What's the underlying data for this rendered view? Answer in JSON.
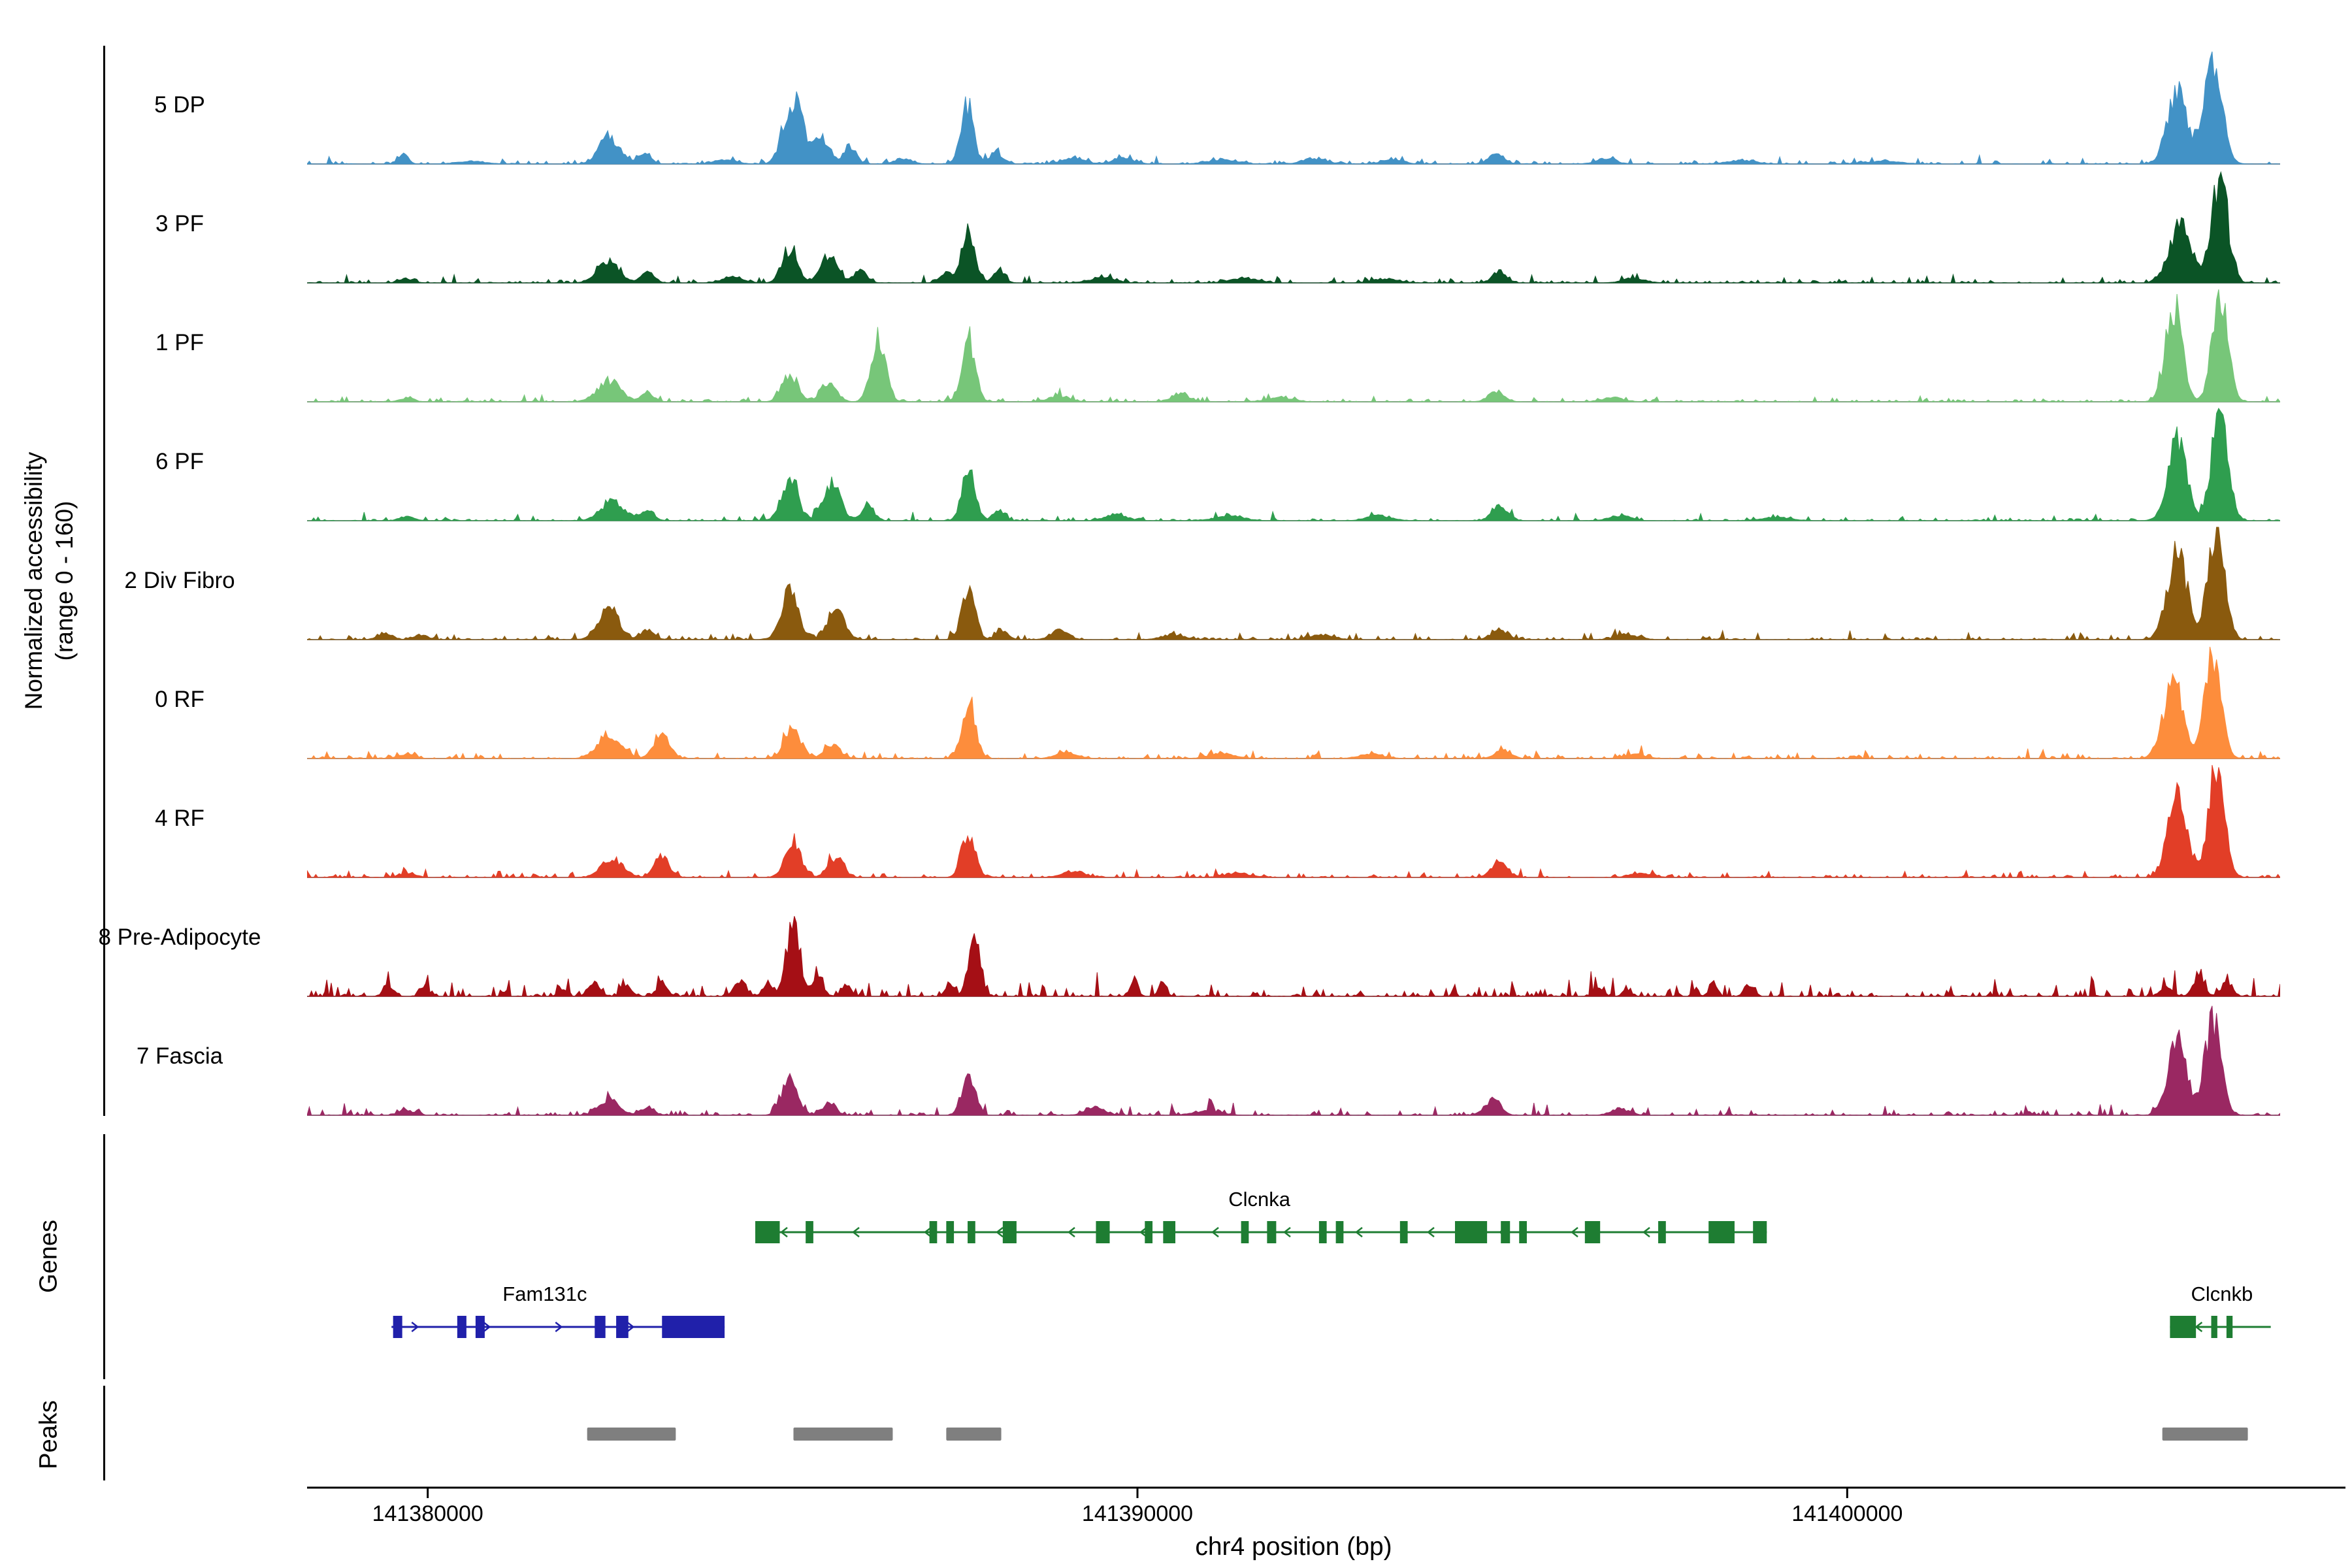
{
  "y_axis": {
    "line1": "Normalized accessibility",
    "line2": "(range 0 - 160)"
  },
  "sections": {
    "genes_label": "Genes",
    "peaks_label": "Peaks"
  },
  "x_axis": {
    "title": "chr4 position (bp)",
    "ticks": [
      {
        "bp": 141380000,
        "label": "141380000"
      },
      {
        "bp": 141390000,
        "label": "141390000"
      },
      {
        "bp": 141400000,
        "label": "141400000"
      }
    ]
  },
  "chart_data": {
    "type": "area",
    "xlim": [
      141378300,
      141406100
    ],
    "ylim": [
      0,
      160
    ],
    "xlabel": "chr4 position (bp)",
    "ylabel": "Normalized accessibility (range 0 - 160)",
    "tracks": [
      {
        "label": "5 DP",
        "color": "#4292c6",
        "noise": 7,
        "peaks": [
          [
            141379650,
            15,
            70
          ],
          [
            141380600,
            4,
            200
          ],
          [
            141382550,
            38,
            140
          ],
          [
            141383050,
            16,
            90
          ],
          [
            141384200,
            6,
            150
          ],
          [
            141385000,
            30,
            90
          ],
          [
            141385200,
            88,
            100
          ],
          [
            141385550,
            38,
            110
          ],
          [
            141385950,
            25,
            85
          ],
          [
            141386700,
            8,
            120
          ],
          [
            141387600,
            85,
            90
          ],
          [
            141388000,
            18,
            80
          ],
          [
            141389100,
            9,
            150
          ],
          [
            141389800,
            8,
            150
          ],
          [
            141391200,
            6,
            200
          ],
          [
            141392500,
            8,
            160
          ],
          [
            141393600,
            6,
            150
          ],
          [
            141395050,
            14,
            110
          ],
          [
            141396600,
            6,
            150
          ],
          [
            141398500,
            5,
            200
          ],
          [
            141400500,
            4,
            250
          ],
          [
            141404650,
            100,
            140
          ],
          [
            141405150,
            138,
            130
          ]
        ]
      },
      {
        "label": "3 PF",
        "color": "#0b5426",
        "noise": 7,
        "peaks": [
          [
            141379700,
            6,
            100
          ],
          [
            141382550,
            30,
            150
          ],
          [
            141383100,
            16,
            90
          ],
          [
            141384300,
            8,
            150
          ],
          [
            141385100,
            48,
            110
          ],
          [
            141385650,
            40,
            120
          ],
          [
            141386100,
            18,
            90
          ],
          [
            141387300,
            14,
            90
          ],
          [
            141387620,
            78,
            90
          ],
          [
            141388050,
            16,
            80
          ],
          [
            141389500,
            8,
            160
          ],
          [
            141391500,
            6,
            200
          ],
          [
            141393500,
            6,
            180
          ],
          [
            141395100,
            16,
            100
          ],
          [
            141397000,
            6,
            160
          ],
          [
            141404700,
            88,
            150
          ],
          [
            141405250,
            148,
            115
          ]
        ]
      },
      {
        "label": "1 PF",
        "color": "#77c679",
        "noise": 7,
        "peaks": [
          [
            141379700,
            5,
            100
          ],
          [
            141382550,
            30,
            160
          ],
          [
            141383100,
            12,
            90
          ],
          [
            141385100,
            40,
            110
          ],
          [
            141385650,
            28,
            110
          ],
          [
            141386350,
            92,
            100
          ],
          [
            141387620,
            85,
            95
          ],
          [
            141388900,
            8,
            150
          ],
          [
            141390600,
            12,
            120
          ],
          [
            141392000,
            6,
            180
          ],
          [
            141395050,
            15,
            110
          ],
          [
            141396700,
            6,
            150
          ],
          [
            141404600,
            135,
            115
          ],
          [
            141405250,
            148,
            110
          ]
        ]
      },
      {
        "label": "6 PF",
        "color": "#2f9e4f",
        "noise": 7,
        "peaks": [
          [
            141379700,
            6,
            100
          ],
          [
            141382600,
            28,
            150
          ],
          [
            141383100,
            14,
            90
          ],
          [
            141385100,
            58,
            115
          ],
          [
            141385700,
            52,
            120
          ],
          [
            141386200,
            20,
            90
          ],
          [
            141387620,
            75,
            90
          ],
          [
            141388050,
            15,
            80
          ],
          [
            141389700,
            9,
            150
          ],
          [
            141391300,
            6,
            200
          ],
          [
            141393400,
            7,
            170
          ],
          [
            141395100,
            19,
            110
          ],
          [
            141396800,
            7,
            150
          ],
          [
            141399000,
            5,
            200
          ],
          [
            141404650,
            112,
            130
          ],
          [
            141405250,
            152,
            115
          ]
        ]
      },
      {
        "label": "2 Div Fibro",
        "color": "#8a5a0e",
        "noise": 8,
        "peaks": [
          [
            141379400,
            9,
            100
          ],
          [
            141379900,
            7,
            90
          ],
          [
            141382550,
            46,
            140
          ],
          [
            141383100,
            14,
            90
          ],
          [
            141385100,
            66,
            120
          ],
          [
            141385750,
            44,
            115
          ],
          [
            141387620,
            70,
            95
          ],
          [
            141388100,
            14,
            80
          ],
          [
            141388900,
            13,
            120
          ],
          [
            141390500,
            7,
            160
          ],
          [
            141392600,
            7,
            160
          ],
          [
            141395100,
            15,
            110
          ],
          [
            141396900,
            7,
            150
          ],
          [
            141404650,
            118,
            140
          ],
          [
            141405200,
            158,
            115
          ]
        ]
      },
      {
        "label": "0 RF",
        "color": "#fd8d3c",
        "noise": 8,
        "peaks": [
          [
            141379700,
            6,
            110
          ],
          [
            141382550,
            34,
            160
          ],
          [
            141383300,
            36,
            110
          ],
          [
            141385150,
            40,
            115
          ],
          [
            141385700,
            20,
            105
          ],
          [
            141387620,
            78,
            95
          ],
          [
            141389000,
            8,
            150
          ],
          [
            141391200,
            7,
            180
          ],
          [
            141393300,
            6,
            170
          ],
          [
            141395150,
            13,
            110
          ],
          [
            141397000,
            6,
            150
          ],
          [
            141404600,
            108,
            140
          ],
          [
            141405150,
            148,
            115
          ]
        ]
      },
      {
        "label": "4 RF",
        "color": "#e23e27",
        "noise": 8,
        "peaks": [
          [
            141379700,
            6,
            110
          ],
          [
            141382600,
            26,
            150
          ],
          [
            141383300,
            30,
            105
          ],
          [
            141385150,
            46,
            115
          ],
          [
            141385750,
            28,
            105
          ],
          [
            141387620,
            60,
            95
          ],
          [
            141389100,
            9,
            150
          ],
          [
            141391400,
            6,
            180
          ],
          [
            141395100,
            24,
            110
          ],
          [
            141397100,
            6,
            150
          ],
          [
            141404650,
            122,
            130
          ],
          [
            141405200,
            148,
            115
          ]
        ]
      },
      {
        "label": "8 Pre-Adipocyte",
        "color": "#a50f15",
        "noise": 18,
        "peaks": [
          [
            141379450,
            16,
            70
          ],
          [
            141379950,
            12,
            60
          ],
          [
            141381900,
            10,
            60
          ],
          [
            141382350,
            18,
            80
          ],
          [
            141382800,
            16,
            70
          ],
          [
            141383300,
            20,
            70
          ],
          [
            141384400,
            22,
            80
          ],
          [
            141384800,
            18,
            70
          ],
          [
            141385150,
            105,
            95
          ],
          [
            141385500,
            30,
            70
          ],
          [
            141385900,
            16,
            70
          ],
          [
            141387350,
            16,
            60
          ],
          [
            141387700,
            78,
            85
          ],
          [
            141389950,
            20,
            55
          ],
          [
            141390350,
            18,
            55
          ],
          [
            141396500,
            12,
            70
          ],
          [
            141396900,
            10,
            60
          ],
          [
            141398100,
            14,
            55
          ],
          [
            141398600,
            16,
            55
          ],
          [
            141404500,
            16,
            80
          ],
          [
            141404950,
            26,
            80
          ],
          [
            141405350,
            20,
            80
          ]
        ]
      },
      {
        "label": "7 Fascia",
        "color": "#9a2862",
        "noise": 9,
        "peaks": [
          [
            141379700,
            7,
            100
          ],
          [
            141382550,
            22,
            140
          ],
          [
            141383100,
            12,
            90
          ],
          [
            141385100,
            52,
            110
          ],
          [
            141385650,
            16,
            100
          ],
          [
            141387620,
            58,
            90
          ],
          [
            141389400,
            11,
            130
          ],
          [
            141391000,
            7,
            180
          ],
          [
            141395000,
            21,
            110
          ],
          [
            141396800,
            9,
            130
          ],
          [
            141404650,
            102,
            130
          ],
          [
            141405150,
            128,
            115
          ]
        ]
      }
    ],
    "genes": [
      {
        "name": "Clcnka",
        "color": "#1e7d32",
        "strand": "-",
        "row": 0,
        "start": 141384615,
        "end": 141398867,
        "label_bp": 141391718,
        "exons": [
          [
            141384615,
            141384960
          ],
          [
            141385325,
            141385433
          ],
          [
            141387069,
            141387177
          ],
          [
            141387306,
            141387414
          ],
          [
            141387607,
            141387715
          ],
          [
            141388102,
            141388296
          ],
          [
            141389415,
            141389609
          ],
          [
            141390104,
            141390212
          ],
          [
            141390362,
            141390534
          ],
          [
            141391460,
            141391568
          ],
          [
            141391826,
            141391955
          ],
          [
            141392558,
            141392666
          ],
          [
            141392795,
            141392903
          ],
          [
            141393699,
            141393807
          ],
          [
            141394474,
            141394926
          ],
          [
            141395120,
            141395249
          ],
          [
            141395378,
            141395486
          ],
          [
            141396304,
            141396519
          ],
          [
            141397337,
            141397445
          ],
          [
            141398047,
            141398413
          ],
          [
            141398673,
            141398867
          ]
        ]
      },
      {
        "name": "Fam131c",
        "color": "#2020aa",
        "strand": "+",
        "row": 1,
        "start": 141379490,
        "end": 141384183,
        "label_bp": 141381650,
        "exons": [
          [
            141379512,
            141379641
          ],
          [
            141380416,
            141380545
          ],
          [
            141380674,
            141380803
          ],
          [
            141382353,
            141382504
          ],
          [
            141382655,
            141382827
          ],
          [
            141383301,
            141384183
          ]
        ]
      },
      {
        "name": "Clcnkb",
        "color": "#1e7d32",
        "strand": "-",
        "row": 1,
        "start": 141404548,
        "end": 141405968,
        "label_bp": 141405280,
        "exons": [
          [
            141404548,
            141404914
          ],
          [
            141405129,
            141405215
          ],
          [
            141405344,
            141405430
          ]
        ]
      }
    ],
    "peaks": [
      [
        141382246,
        141383495
      ],
      [
        141385153,
        141386552
      ],
      [
        141387306,
        141388081
      ],
      [
        141404440,
        141405645
      ]
    ],
    "peak_color": "#7f7f7f"
  }
}
